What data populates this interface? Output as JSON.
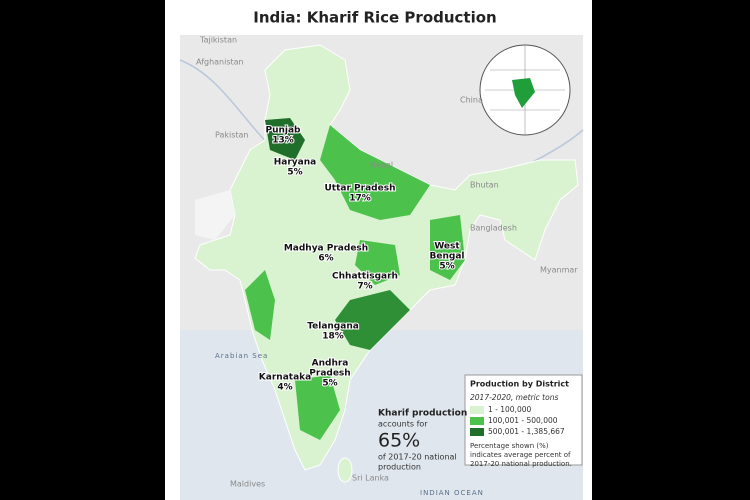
{
  "title": "India: Kharif Rice Production",
  "countries": [
    "Tajikistan",
    "Afghanistan",
    "Pakistan",
    "China",
    "Nepal",
    "Bhutan",
    "Bangladesh",
    "Myanmar",
    "Sri Lanka",
    "Maldives"
  ],
  "seas": [
    "Arabian Sea",
    "INDIAN OCEAN"
  ],
  "states": [
    {
      "lines": [
        "Punjab"
      ],
      "share": "13%"
    },
    {
      "lines": [
        "Haryana"
      ],
      "share": "5%"
    },
    {
      "lines": [
        "Uttar Pradesh"
      ],
      "share": "17%"
    },
    {
      "lines": [
        "Madhya Pradesh"
      ],
      "share": "6%"
    },
    {
      "lines": [
        "West",
        "Bengal"
      ],
      "share": "5%"
    },
    {
      "lines": [
        "Chhattisgarh"
      ],
      "share": "7%"
    },
    {
      "lines": [
        "Telangana"
      ],
      "share": "18%"
    },
    {
      "lines": [
        "Andhra",
        "Pradesh"
      ],
      "share": "5%"
    },
    {
      "lines": [
        "Karnataka"
      ],
      "share": "4%"
    }
  ],
  "annotation": {
    "heading": "Kharif production",
    "lines_before": [
      "accounts for"
    ],
    "big": "65%",
    "lines_after": [
      "of 2017-20 national",
      "production"
    ]
  },
  "legend": {
    "title": "Production by District",
    "subtitle": "2017-2020, metric tons",
    "items": [
      {
        "label": "1 - 100,000",
        "color": "#d9f2d0"
      },
      {
        "label": "100,001 - 500,000",
        "color": "#4cc24c"
      },
      {
        "label": "500,001 - 1,385,667",
        "color": "#1f6e2a"
      }
    ],
    "note": [
      "Percentage shown (%)",
      "indicates average percent of",
      "2017-20 national production."
    ]
  }
}
